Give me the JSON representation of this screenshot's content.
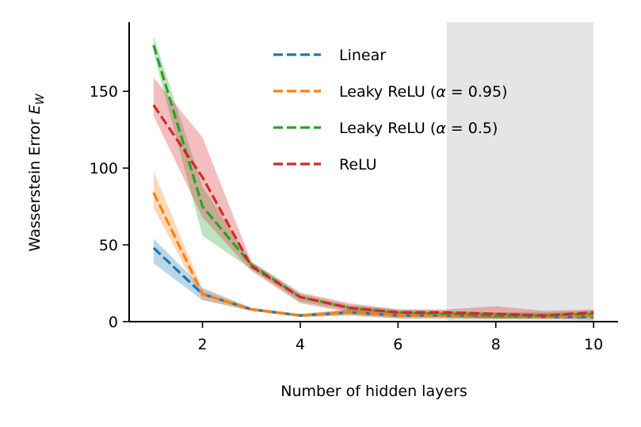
{
  "chart_data": {
    "type": "line",
    "xlabel": "Number of hidden layers",
    "ylabel": "Wasserstein Error E_W",
    "ylabel_parts": {
      "main": "Wasserstein Error ",
      "symbol": "E",
      "subscript": "W"
    },
    "xlim": [
      0.5,
      10.5
    ],
    "ylim": [
      0,
      195
    ],
    "xticks": [
      2,
      4,
      6,
      8,
      10
    ],
    "yticks": [
      0,
      50,
      100,
      150
    ],
    "shaded_region": {
      "x_start": 7,
      "x_end": 10,
      "color": "#e5e5e5"
    },
    "legend_position": "top-right",
    "grid": false,
    "x": [
      1,
      2,
      3,
      4,
      5,
      6,
      7,
      8,
      9,
      10
    ],
    "series": [
      {
        "name": "Linear",
        "color": "#1f77b4",
        "values": [
          48,
          18,
          8,
          4,
          6,
          4,
          4,
          4,
          3,
          3
        ],
        "lower": [
          38,
          14,
          7,
          3,
          4,
          2,
          2,
          2,
          2,
          1
        ],
        "upper": [
          54,
          22,
          9,
          5,
          8,
          6,
          6,
          6,
          5,
          5
        ]
      },
      {
        "name": "Leaky ReLU (α = 0.95)",
        "legend_prefix": "Leaky ReLU (",
        "legend_symbol": "α",
        "legend_suffix": " = 0.95)",
        "color": "#ff7f0e",
        "values": [
          84,
          18,
          8,
          4,
          6,
          4,
          4,
          4,
          3,
          4
        ],
        "lower": [
          74,
          14,
          7,
          3,
          4,
          2,
          2,
          2,
          2,
          2
        ],
        "upper": [
          98,
          21,
          9,
          5,
          8,
          6,
          6,
          6,
          5,
          6
        ]
      },
      {
        "name": "Leaky ReLU (α = 0.5)",
        "legend_prefix": "Leaky ReLU (",
        "legend_symbol": "α",
        "legend_suffix": " = 0.5)",
        "color": "#2ca02c",
        "values": [
          180,
          75,
          37,
          16,
          9,
          6,
          5,
          4,
          4,
          5
        ],
        "lower": [
          175,
          56,
          34,
          13,
          7,
          4,
          3,
          2,
          2,
          3
        ],
        "upper": [
          186,
          88,
          39,
          18,
          11,
          8,
          7,
          6,
          6,
          7
        ]
      },
      {
        "name": "ReLU",
        "color": "#d62728",
        "values": [
          141,
          94,
          36,
          16,
          9,
          6,
          6,
          5,
          4,
          6
        ],
        "lower": [
          134,
          68,
          33,
          12,
          6,
          3,
          3,
          2,
          2,
          3
        ],
        "upper": [
          159,
          120,
          39,
          19,
          12,
          8,
          8,
          10,
          7,
          8
        ]
      }
    ]
  }
}
